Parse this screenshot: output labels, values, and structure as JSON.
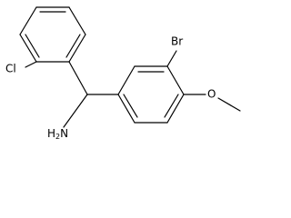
{
  "atoms": {
    "bromine": "Br",
    "chlorine": "Cl",
    "amine": {
      "main": "H",
      "sub": "2",
      "end": "N"
    },
    "oxygen": "O"
  }
}
